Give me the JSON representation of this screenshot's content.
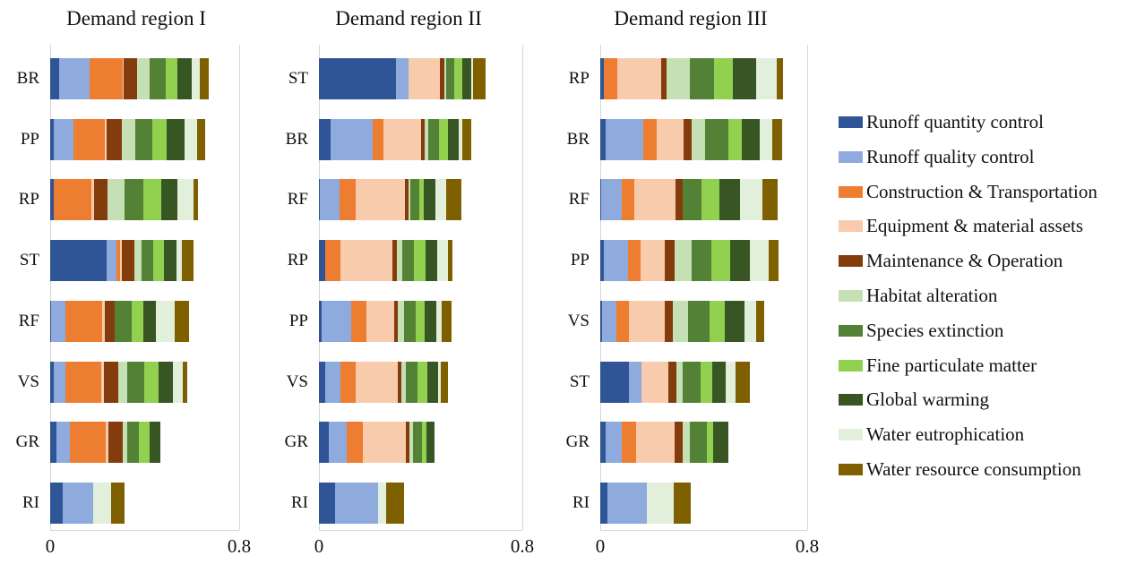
{
  "axis": {
    "tick_labels": [
      "0",
      "0.8"
    ],
    "min": 0,
    "max": 0.8
  },
  "legend": {
    "items": [
      {
        "label": "Runoff quantity control",
        "color": "#2F5597"
      },
      {
        "label": "Runoff quality control",
        "color": "#8FAADC"
      },
      {
        "label": "Construction & Transportation",
        "color": "#ED7D31"
      },
      {
        "label": "Equipment & material assets",
        "color": "#F8CBAD"
      },
      {
        "label": "Maintenance & Operation",
        "color": "#843C0C"
      },
      {
        "label": "Habitat alteration",
        "color": "#C5E0B4"
      },
      {
        "label": "Species extinction",
        "color": "#538135"
      },
      {
        "label": "Fine particulate matter",
        "color": "#92D050"
      },
      {
        "label": "Global warming",
        "color": "#375623"
      },
      {
        "label": "Water eutrophication",
        "color": "#E2EFDA"
      },
      {
        "label": "Water resource consumption",
        "color": "#7F6000"
      }
    ]
  },
  "chart_data": {
    "type": "bar",
    "orientation": "horizontal",
    "stacked": true,
    "xlim": [
      0,
      0.8
    ],
    "grid": "vertical-line-at-0.8-only",
    "legend_position": "right",
    "series_names": [
      "Runoff quantity control",
      "Runoff quality control",
      "Construction & Transportation",
      "Equipment & material assets",
      "Maintenance & Operation",
      "Habitat alteration",
      "Species extinction",
      "Fine particulate matter",
      "Global warming",
      "Water eutrophication",
      "Water resource consumption"
    ],
    "panels": [
      {
        "title": "Demand region I",
        "rows": [
          {
            "label": "BR",
            "values": [
              0.037,
              0.128,
              0.14,
              0.005,
              0.057,
              0.052,
              0.071,
              0.049,
              0.059,
              0.034,
              0.037
            ]
          },
          {
            "label": "PP",
            "values": [
              0.015,
              0.082,
              0.133,
              0.01,
              0.063,
              0.056,
              0.073,
              0.06,
              0.076,
              0.054,
              0.032
            ]
          },
          {
            "label": "RP",
            "values": [
              0.015,
              0.0,
              0.159,
              0.012,
              0.057,
              0.073,
              0.079,
              0.076,
              0.067,
              0.068,
              0.019
            ]
          },
          {
            "label": "ST",
            "values": [
              0.237,
              0.044,
              0.013,
              0.01,
              0.053,
              0.028,
              0.051,
              0.046,
              0.053,
              0.023,
              0.047
            ]
          },
          {
            "label": "RF",
            "values": [
              0.005,
              0.059,
              0.154,
              0.013,
              0.042,
              0.0,
              0.072,
              0.048,
              0.053,
              0.082,
              0.061
            ]
          },
          {
            "label": "VS",
            "values": [
              0.015,
              0.048,
              0.154,
              0.01,
              0.06,
              0.038,
              0.072,
              0.061,
              0.063,
              0.041,
              0.019
            ]
          },
          {
            "label": "GR",
            "values": [
              0.028,
              0.057,
              0.152,
              0.01,
              0.06,
              0.019,
              0.05,
              0.044,
              0.048,
              0.0,
              0.0
            ]
          },
          {
            "label": "RI",
            "values": [
              0.053,
              0.13,
              0.0,
              0.0,
              0.0,
              0.0,
              0.0,
              0.0,
              0.0,
              0.075,
              0.058
            ]
          }
        ]
      },
      {
        "title": "Demand region II",
        "rows": [
          {
            "label": "ST",
            "values": [
              0.302,
              0.05,
              0.0,
              0.125,
              0.015,
              0.007,
              0.034,
              0.03,
              0.035,
              0.009,
              0.049
            ]
          },
          {
            "label": "BR",
            "values": [
              0.046,
              0.165,
              0.043,
              0.147,
              0.014,
              0.015,
              0.041,
              0.035,
              0.043,
              0.015,
              0.035
            ]
          },
          {
            "label": "RF",
            "values": [
              0.005,
              0.077,
              0.061,
              0.197,
              0.012,
              0.006,
              0.037,
              0.018,
              0.045,
              0.041,
              0.061
            ]
          },
          {
            "label": "RP",
            "values": [
              0.026,
              0.0,
              0.059,
              0.205,
              0.015,
              0.023,
              0.047,
              0.043,
              0.047,
              0.041,
              0.02
            ]
          },
          {
            "label": "PP",
            "values": [
              0.012,
              0.114,
              0.059,
              0.112,
              0.014,
              0.024,
              0.047,
              0.035,
              0.045,
              0.021,
              0.037
            ]
          },
          {
            "label": "VS",
            "values": [
              0.026,
              0.059,
              0.059,
              0.167,
              0.012,
              0.017,
              0.049,
              0.038,
              0.041,
              0.012,
              0.029
            ]
          },
          {
            "label": "GR",
            "values": [
              0.038,
              0.073,
              0.062,
              0.168,
              0.016,
              0.013,
              0.034,
              0.019,
              0.032,
              0.0,
              0.0
            ]
          },
          {
            "label": "RI",
            "values": [
              0.063,
              0.168,
              0.0,
              0.0,
              0.0,
              0.0,
              0.0,
              0.0,
              0.0,
              0.033,
              0.069
            ]
          }
        ]
      },
      {
        "title": "Demand region III",
        "rows": [
          {
            "label": "RP",
            "values": [
              0.014,
              0.0,
              0.053,
              0.17,
              0.021,
              0.089,
              0.092,
              0.075,
              0.087,
              0.081,
              0.023
            ]
          },
          {
            "label": "BR",
            "values": [
              0.021,
              0.146,
              0.05,
              0.106,
              0.031,
              0.05,
              0.092,
              0.052,
              0.069,
              0.046,
              0.04
            ]
          },
          {
            "label": "RF",
            "values": [
              0.004,
              0.08,
              0.046,
              0.161,
              0.029,
              0.0,
              0.071,
              0.069,
              0.079,
              0.089,
              0.058
            ]
          },
          {
            "label": "PP",
            "values": [
              0.014,
              0.092,
              0.049,
              0.096,
              0.037,
              0.066,
              0.075,
              0.073,
              0.075,
              0.075,
              0.035
            ]
          },
          {
            "label": "VS",
            "values": [
              0.008,
              0.053,
              0.051,
              0.136,
              0.033,
              0.06,
              0.083,
              0.058,
              0.076,
              0.046,
              0.028
            ]
          },
          {
            "label": "ST",
            "values": [
              0.11,
              0.048,
              0.0,
              0.106,
              0.029,
              0.026,
              0.067,
              0.046,
              0.054,
              0.038,
              0.054
            ]
          },
          {
            "label": "GR",
            "values": [
              0.021,
              0.063,
              0.054,
              0.148,
              0.031,
              0.029,
              0.066,
              0.023,
              0.059,
              0.0,
              0.0
            ]
          },
          {
            "label": "RI",
            "values": [
              0.027,
              0.154,
              0.0,
              0.0,
              0.0,
              0.0,
              0.0,
              0.0,
              0.0,
              0.102,
              0.066
            ]
          }
        ]
      }
    ]
  }
}
